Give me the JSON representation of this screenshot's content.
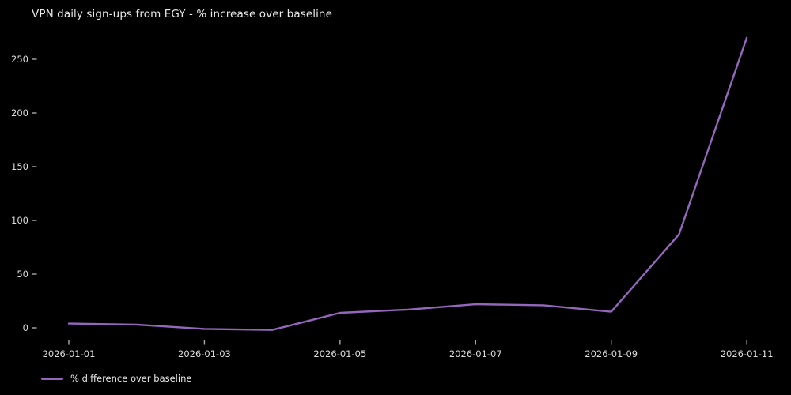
{
  "page": {
    "background": "#000000",
    "text_color": "#eaeaea",
    "tick_color": "#aaaaaa"
  },
  "chart_data": {
    "type": "line",
    "title": "VPN daily sign-ups from EGY - % increase over baseline",
    "xlabel": "",
    "ylabel": "",
    "x": [
      "2026-01-01",
      "2026-01-02",
      "2026-01-03",
      "2026-01-04",
      "2026-01-05",
      "2026-01-06",
      "2026-01-07",
      "2026-01-08",
      "2026-01-09",
      "2026-01-10",
      "2026-01-11"
    ],
    "series": [
      {
        "name": "% difference over baseline",
        "color": "#9467bd",
        "values": [
          4,
          3,
          -1,
          -2,
          14,
          17,
          22,
          21,
          15,
          87,
          270
        ]
      }
    ],
    "x_ticks": [
      {
        "label": "2026-01-01",
        "index": 0
      },
      {
        "label": "2026-01-03",
        "index": 2
      },
      {
        "label": "2026-01-05",
        "index": 4
      },
      {
        "label": "2026-01-07",
        "index": 6
      },
      {
        "label": "2026-01-09",
        "index": 8
      },
      {
        "label": "2026-01-11",
        "index": 10
      }
    ],
    "y_ticks": [
      0,
      50,
      100,
      150,
      200,
      250
    ],
    "ylim": [
      -20,
      285
    ],
    "grid": false,
    "background": "#000000",
    "legend_position": "lower-left"
  }
}
